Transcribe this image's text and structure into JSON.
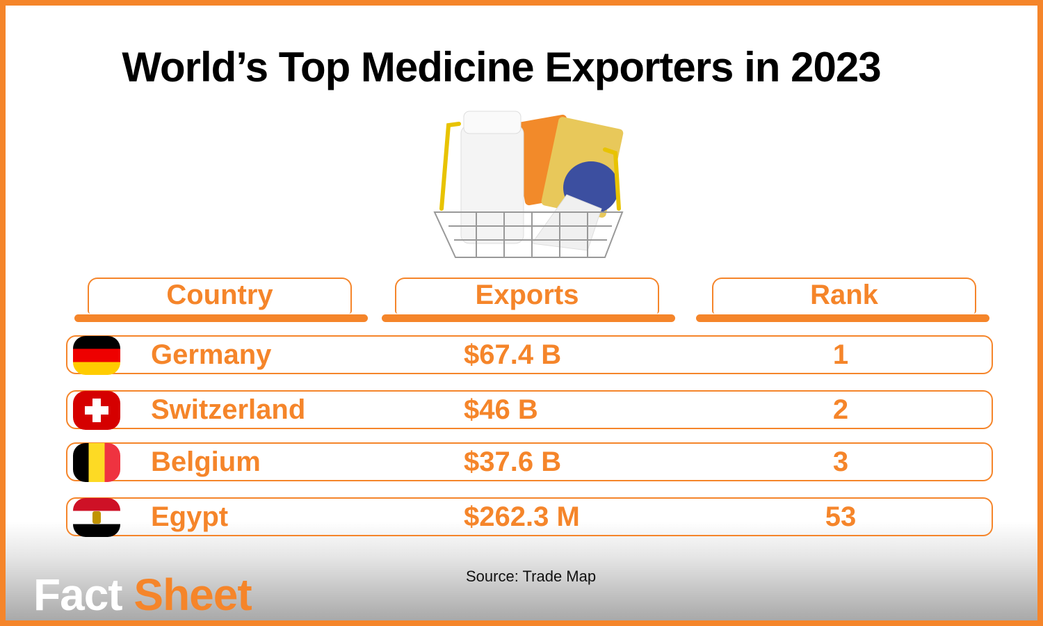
{
  "title": "World’s Top Medicine Exporters in 2023",
  "colors": {
    "accent": "#F5852A"
  },
  "chart_data": {
    "type": "table",
    "columns": [
      "Country",
      "Exports",
      "Rank"
    ],
    "rows": [
      {
        "country": "Germany",
        "exports": "$67.4 B",
        "rank": "1",
        "flag": "germany-flag"
      },
      {
        "country": "Switzerland",
        "exports": "$46 B",
        "rank": "2",
        "flag": "switzerland-flag"
      },
      {
        "country": "Belgium",
        "exports": "$37.6 B",
        "rank": "3",
        "flag": "belgium-flag"
      },
      {
        "country": "Egypt",
        "exports": "$262.3 M",
        "rank": "53",
        "flag": "egypt-flag"
      }
    ]
  },
  "source": "Source: Trade Map",
  "logo": {
    "word1": "Fact",
    "word2": "Sheet"
  }
}
